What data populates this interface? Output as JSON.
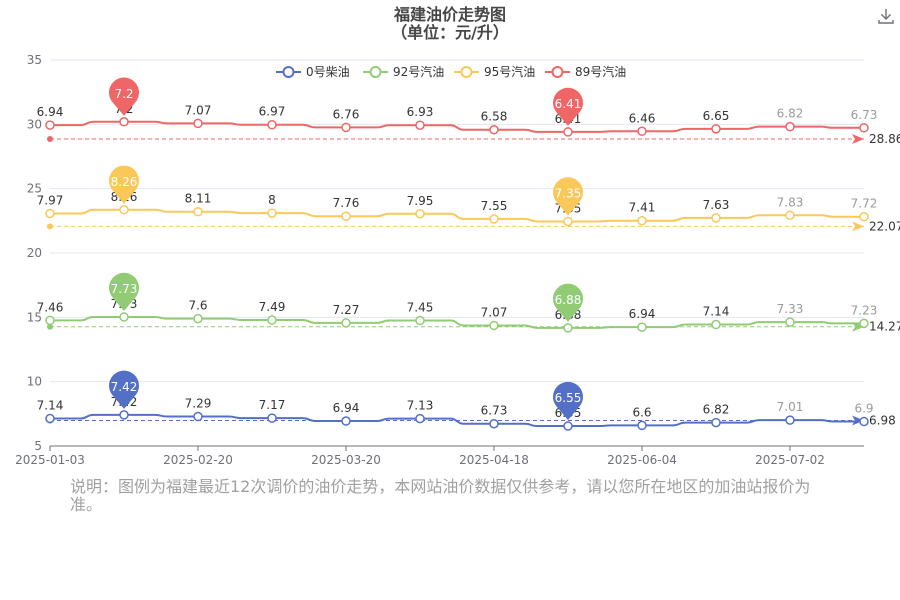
{
  "title": "福建油价走势图",
  "subtitle": "（单位：元/升）",
  "note": "说明：图例为福建最近12次调价的油价走势，本网站油价数据仅供参考，请以您所在地区的加油站报价为准。",
  "toolbar": {
    "download_icon": "download-icon"
  },
  "chart_data": {
    "type": "line",
    "x_axis_labels": [
      "2025-01-03",
      "2025-02-20",
      "2025-03-20",
      "2025-04-18",
      "2025-06-04",
      "2025-07-02"
    ],
    "ylim": [
      5,
      35
    ],
    "yticks": [
      5,
      10,
      15,
      20,
      25,
      30,
      35
    ],
    "legend_position": "top",
    "series": [
      {
        "name": "0号柴油",
        "color": "#5470c6",
        "values": [
          7.14,
          7.42,
          7.29,
          7.17,
          6.94,
          7.13,
          6.73,
          6.55,
          6.6,
          6.82,
          7.01,
          6.9
        ],
        "labels": [
          "7.14",
          "7.42",
          "7.29",
          "7.17",
          "6.94",
          "7.13",
          "6.73",
          "6.55",
          "6.6",
          "6.82",
          "7.01",
          "6.9"
        ],
        "max_pin": "7.42",
        "min_pin": "6.55",
        "average": 6.98,
        "average_label": "6.98"
      },
      {
        "name": "92号汽油",
        "color": "#91cc75",
        "values": [
          7.46,
          7.73,
          7.6,
          7.49,
          7.27,
          7.45,
          7.07,
          6.88,
          6.94,
          7.14,
          7.33,
          7.23
        ],
        "labels": [
          "7.46",
          "7.73",
          "7.6",
          "7.49",
          "7.27",
          "7.45",
          "7.07",
          "6.88",
          "6.94",
          "7.14",
          "7.33",
          "7.23"
        ],
        "max_pin": "7.73",
        "min_pin": "6.88",
        "average": 14.27,
        "average_label": "14.27"
      },
      {
        "name": "95号汽油",
        "color": "#fac858",
        "values": [
          7.97,
          8.26,
          8.11,
          8.0,
          7.76,
          7.95,
          7.55,
          7.35,
          7.41,
          7.63,
          7.83,
          7.72
        ],
        "labels": [
          "7.97",
          "8.26",
          "8.11",
          "8",
          "7.76",
          "7.95",
          "7.55",
          "7.35",
          "7.41",
          "7.63",
          "7.83",
          "7.72"
        ],
        "max_pin": "8.26",
        "min_pin": "7.35",
        "average": 22.07,
        "average_label": "22.07"
      },
      {
        "name": "89号汽油",
        "color": "#ee6666",
        "values": [
          6.94,
          7.2,
          7.07,
          6.97,
          6.76,
          6.93,
          6.58,
          6.41,
          6.46,
          6.65,
          6.82,
          6.73
        ],
        "labels": [
          "6.94",
          "7.2",
          "7.07",
          "6.97",
          "6.76",
          "6.93",
          "6.58",
          "6.41",
          "6.46",
          "6.65",
          "6.82",
          "6.73"
        ],
        "max_pin": "7.2",
        "min_pin": "6.41",
        "average": 28.86,
        "average_label": "28.86"
      }
    ]
  }
}
